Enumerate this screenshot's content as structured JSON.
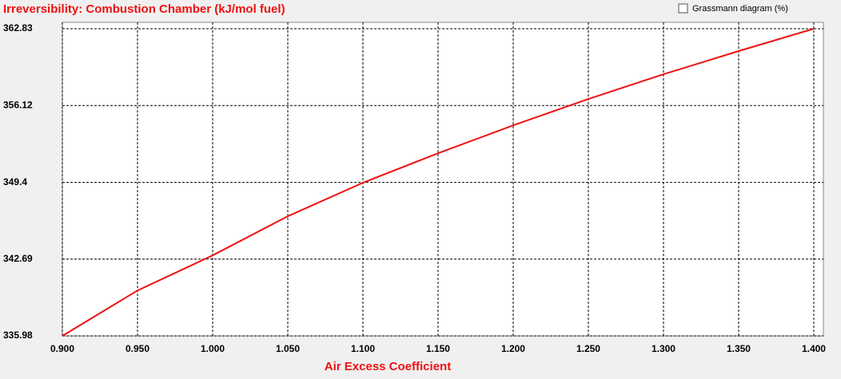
{
  "chart_data": {
    "type": "line",
    "title": "Irreversibility: Combustion Chamber (kJ/mol fuel)",
    "x_label": "Air Excess Coefficient",
    "checkbox_label": "Grassmann diagram (%)",
    "x": [
      0.9,
      0.95,
      1.0,
      1.05,
      1.1,
      1.15,
      1.2,
      1.25,
      1.3,
      1.35,
      1.4
    ],
    "series": [
      {
        "name": "Irreversibility",
        "color": "#ee1111",
        "values": [
          335.98,
          339.95,
          343.02,
          346.44,
          349.37,
          351.95,
          354.39,
          356.69,
          358.85,
          360.88,
          362.83
        ]
      }
    ],
    "xlim": [
      0.9,
      1.4064
    ],
    "ylim": [
      335.98,
      363.39
    ],
    "xticks": [
      {
        "value": 0.9,
        "label": "0.900"
      },
      {
        "value": 0.95,
        "label": "0.950"
      },
      {
        "value": 1.0,
        "label": "1.000"
      },
      {
        "value": 1.05,
        "label": "1.050"
      },
      {
        "value": 1.1,
        "label": "1.100"
      },
      {
        "value": 1.15,
        "label": "1.150"
      },
      {
        "value": 1.2,
        "label": "1.200"
      },
      {
        "value": 1.25,
        "label": "1.250"
      },
      {
        "value": 1.3,
        "label": "1.300"
      },
      {
        "value": 1.35,
        "label": "1.350"
      },
      {
        "value": 1.4,
        "label": "1.400"
      }
    ],
    "yticks": [
      335.98,
      342.69,
      349.4,
      356.12,
      362.83
    ],
    "grid": true
  }
}
